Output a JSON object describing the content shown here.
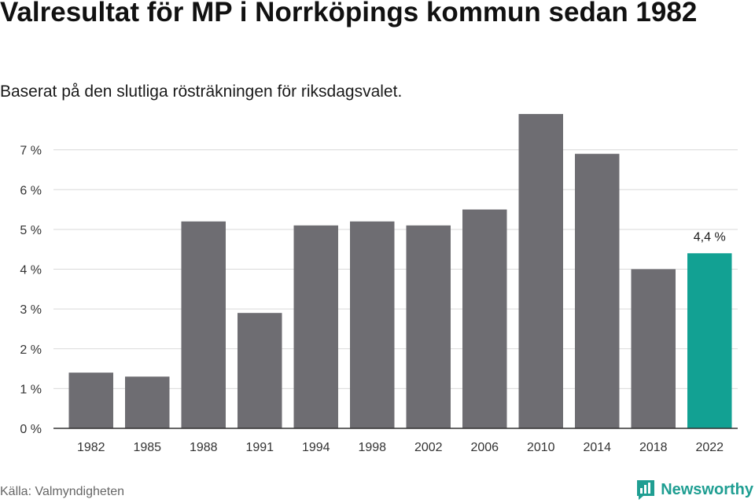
{
  "title": "Valresultat för MP i Norrköpings kommun sedan 1982",
  "subtitle": "Baserat på den slutliga rösträkningen för riksdagsvalet.",
  "source": "Källa: Valmyndigheten",
  "brand": {
    "name": "Newsworthy",
    "icon": "bar-chart-logo-icon"
  },
  "colors": {
    "bar": "#6e6d72",
    "highlight": "#12a193",
    "grid": "#d9d9d9",
    "axis": "#333333"
  },
  "chart_data": {
    "type": "bar",
    "categories": [
      "1982",
      "1985",
      "1988",
      "1991",
      "1994",
      "1998",
      "2002",
      "2006",
      "2010",
      "2014",
      "2018",
      "2022"
    ],
    "values": [
      1.4,
      1.3,
      5.2,
      2.9,
      5.1,
      5.2,
      5.1,
      5.5,
      7.9,
      6.9,
      4.0,
      4.4
    ],
    "ylim": [
      0,
      8
    ],
    "yticks": [
      0,
      1,
      2,
      3,
      4,
      5,
      6,
      7
    ],
    "ytick_labels": [
      "0 %",
      "1 %",
      "2 %",
      "3 %",
      "4 %",
      "5 %",
      "6 %",
      "7 %"
    ],
    "highlight_index": 11,
    "annotations": [
      {
        "category": "2022",
        "text": "4,4 %"
      }
    ],
    "grid": true,
    "xlabel": "",
    "ylabel": ""
  }
}
